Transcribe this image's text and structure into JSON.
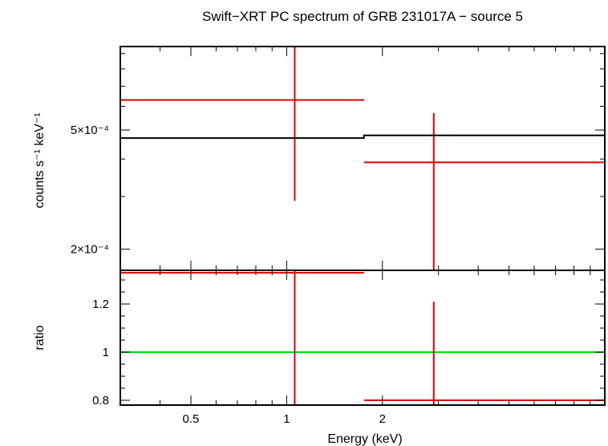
{
  "title": "Swift−XRT PC spectrum of GRB 231017A − source 5",
  "colors": {
    "data": "#e00000",
    "model": "#000000",
    "unity": "#00e000",
    "frame": "#000000"
  },
  "chart_data": [
    {
      "type": "scatter",
      "panel": "spectrum",
      "xlabel": "",
      "ylabel": "counts s⁻¹ keV⁻¹",
      "xscale": "log",
      "yscale": "log",
      "xlim": [
        0.3,
        10
      ],
      "ylim": [
        0.00017,
        0.00095
      ],
      "yticks": [
        {
          "value": 0.0005,
          "label": "5×10⁻⁴"
        },
        {
          "value": 0.0002,
          "label": "2×10⁻⁴"
        }
      ],
      "series": [
        {
          "role": "data",
          "points": [
            {
              "x": 1.06,
              "x_lo": 0.3,
              "x_hi": 1.75,
              "y": 0.00063,
              "y_lo": 0.00029,
              "y_hi": 0.00095
            },
            {
              "x": 2.9,
              "x_lo": 1.75,
              "x_hi": 10,
              "y": 0.00039,
              "y_lo": 0.00017,
              "y_hi": 0.00057
            }
          ]
        },
        {
          "role": "model",
          "steps": [
            {
              "x_lo": 0.3,
              "x_hi": 1.75,
              "y": 0.00047
            },
            {
              "x_lo": 1.75,
              "x_hi": 10,
              "y": 0.00048
            }
          ]
        }
      ]
    },
    {
      "type": "scatter",
      "panel": "ratio",
      "xlabel": "Energy (keV)",
      "ylabel": "ratio",
      "xscale": "log",
      "yscale": "linear",
      "xlim": [
        0.3,
        10
      ],
      "ylim": [
        0.78,
        1.34
      ],
      "xticks": [
        {
          "value": 0.5,
          "label": "0.5"
        },
        {
          "value": 1,
          "label": "1"
        },
        {
          "value": 2,
          "label": "2"
        }
      ],
      "yticks": [
        {
          "value": 0.8,
          "label": "0.8"
        },
        {
          "value": 1,
          "label": "1"
        },
        {
          "value": 1.2,
          "label": "1.2"
        }
      ],
      "reference_line": 1,
      "series": [
        {
          "role": "data",
          "points": [
            {
              "x": 1.06,
              "x_lo": 0.3,
              "x_hi": 1.75,
              "y": 1.33,
              "y_lo": 0.78,
              "y_hi": 1.34
            },
            {
              "x": 2.9,
              "x_lo": 1.75,
              "x_hi": 10,
              "y": 0.8,
              "y_lo": 0.78,
              "y_hi": 1.21
            }
          ]
        }
      ]
    }
  ]
}
